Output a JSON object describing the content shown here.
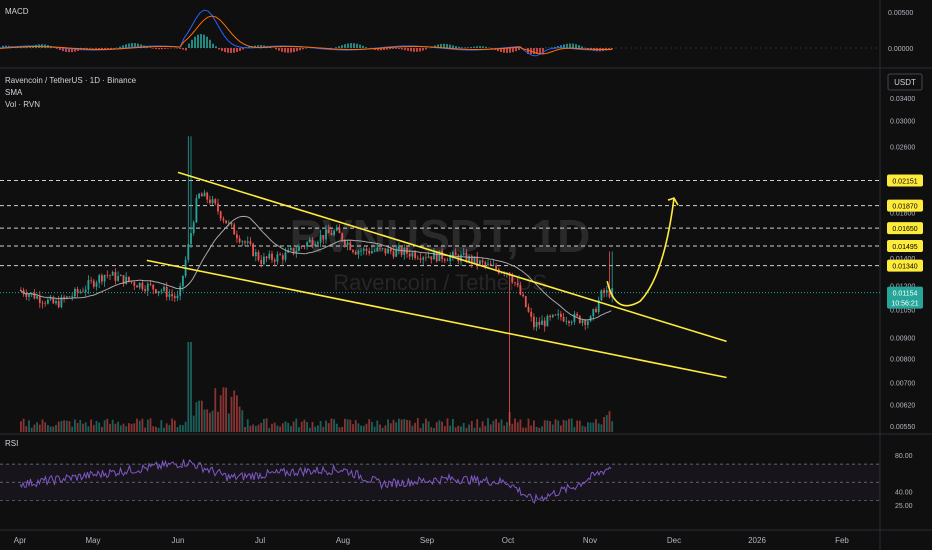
{
  "header": {
    "macd_label": "MACD",
    "symbol_title": "Ravencoin / TetherUS · 1D · Binance",
    "sma_label": "SMA",
    "vol_label": "Vol · RVN",
    "rsi_label": "RSI",
    "currency_badge": "USDT",
    "watermark_ticker": "RVNUSDT, 1D",
    "watermark_name": "Ravencoin / TetherUS"
  },
  "macd_axis": [
    "0.00500",
    "0.00000"
  ],
  "price_axis": [
    "0.03400",
    "0.03000",
    "0.02600",
    "0.02200",
    "0.01800",
    "0.01650",
    "0.01400",
    "0.01200",
    "0.01050",
    "0.00900",
    "0.00800",
    "0.00700",
    "0.00620",
    "0.00550"
  ],
  "level_badges": [
    "0.02151",
    "0.01870",
    "0.01650",
    "0.01495",
    "0.01340"
  ],
  "current_price": "0.01154",
  "countdown": "10:56:21",
  "rsi_axis": [
    "80.00",
    "40.00",
    "25.00"
  ],
  "time_axis": [
    "Apr",
    "May",
    "Jun",
    "Jul",
    "Aug",
    "Sep",
    "Oct",
    "Nov",
    "Dec",
    "2026",
    "Feb"
  ],
  "colors": {
    "up": "#26a69a",
    "down": "#ef5350",
    "trend": "#ffeb3b",
    "sma": "#a7a7a7",
    "rsi": "#7e57c2",
    "macd": "#2962ff",
    "signal": "#ff6d00",
    "badge": "#ffeb3b",
    "price_badge": "#26a69a"
  },
  "chart_data": {
    "type": "candlestick",
    "title": "Ravencoin / TetherUS · 1D · Binance",
    "indicators": [
      "MACD",
      "SMA",
      "Vol · RVN",
      "RSI"
    ],
    "x_range": [
      "Apr",
      "Feb"
    ],
    "price_ylim": [
      0.0055,
      0.034
    ],
    "rsi_ylim": [
      25,
      80
    ],
    "horizontal_levels": [
      0.02151,
      0.0187,
      0.0165,
      0.01495,
      0.0134
    ],
    "last_price": 0.01154,
    "close_path": [
      {
        "d": "Apr 1",
        "v": 0.0117
      },
      {
        "d": "Apr 15",
        "v": 0.0108
      },
      {
        "d": "Apr 25",
        "v": 0.0116
      },
      {
        "d": "May 5",
        "v": 0.0128
      },
      {
        "d": "May 15",
        "v": 0.0122
      },
      {
        "d": "May 25",
        "v": 0.0117
      },
      {
        "d": "Jun 1",
        "v": 0.0111
      },
      {
        "d": "Jun 5",
        "v": 0.0155
      },
      {
        "d": "Jun 8",
        "v": 0.0198
      },
      {
        "d": "Jun 12",
        "v": 0.0194
      },
      {
        "d": "Jun 20",
        "v": 0.0165
      },
      {
        "d": "Jul 1",
        "v": 0.0138
      },
      {
        "d": "Jul 10",
        "v": 0.0142
      },
      {
        "d": "Jul 20",
        "v": 0.0155
      },
      {
        "d": "Jul 28",
        "v": 0.0162
      },
      {
        "d": "Aug 5",
        "v": 0.0146
      },
      {
        "d": "Aug 20",
        "v": 0.0145
      },
      {
        "d": "Sep 1",
        "v": 0.0142
      },
      {
        "d": "Sep 15",
        "v": 0.014
      },
      {
        "d": "Sep 25",
        "v": 0.0132
      },
      {
        "d": "Oct 1",
        "v": 0.013
      },
      {
        "d": "Oct 10",
        "v": 0.0096
      },
      {
        "d": "Oct 20",
        "v": 0.0101
      },
      {
        "d": "Nov 1",
        "v": 0.0099
      },
      {
        "d": "Nov 5",
        "v": 0.0115
      },
      {
        "d": "Nov 9",
        "v": 0.01154
      }
    ],
    "trendlines": [
      {
        "name": "upper",
        "from": {
          "d": "Jun 1",
          "v": 0.0225
        },
        "to": {
          "d": "Dec 20",
          "v": 0.0088
        }
      },
      {
        "name": "lower",
        "from": {
          "d": "May 20",
          "v": 0.0138
        },
        "to": {
          "d": "Dec 20",
          "v": 0.0072
        }
      }
    ],
    "projection": {
      "from": {
        "d": "Nov 10",
        "v": 0.0107
      },
      "to": {
        "d": "Dec 1",
        "v": 0.0195
      }
    },
    "rsi_path": [
      {
        "d": "Apr 1",
        "v": 48
      },
      {
        "d": "May 1",
        "v": 58
      },
      {
        "d": "Jun 5",
        "v": 72
      },
      {
        "d": "Jun 20",
        "v": 55
      },
      {
        "d": "Jul 15",
        "v": 62
      },
      {
        "d": "Aug 1",
        "v": 64
      },
      {
        "d": "Aug 15",
        "v": 48
      },
      {
        "d": "Sep 10",
        "v": 54
      },
      {
        "d": "Oct 1",
        "v": 50
      },
      {
        "d": "Oct 10",
        "v": 30
      },
      {
        "d": "Oct 25",
        "v": 45
      },
      {
        "d": "Nov 9",
        "v": 68
      }
    ]
  }
}
